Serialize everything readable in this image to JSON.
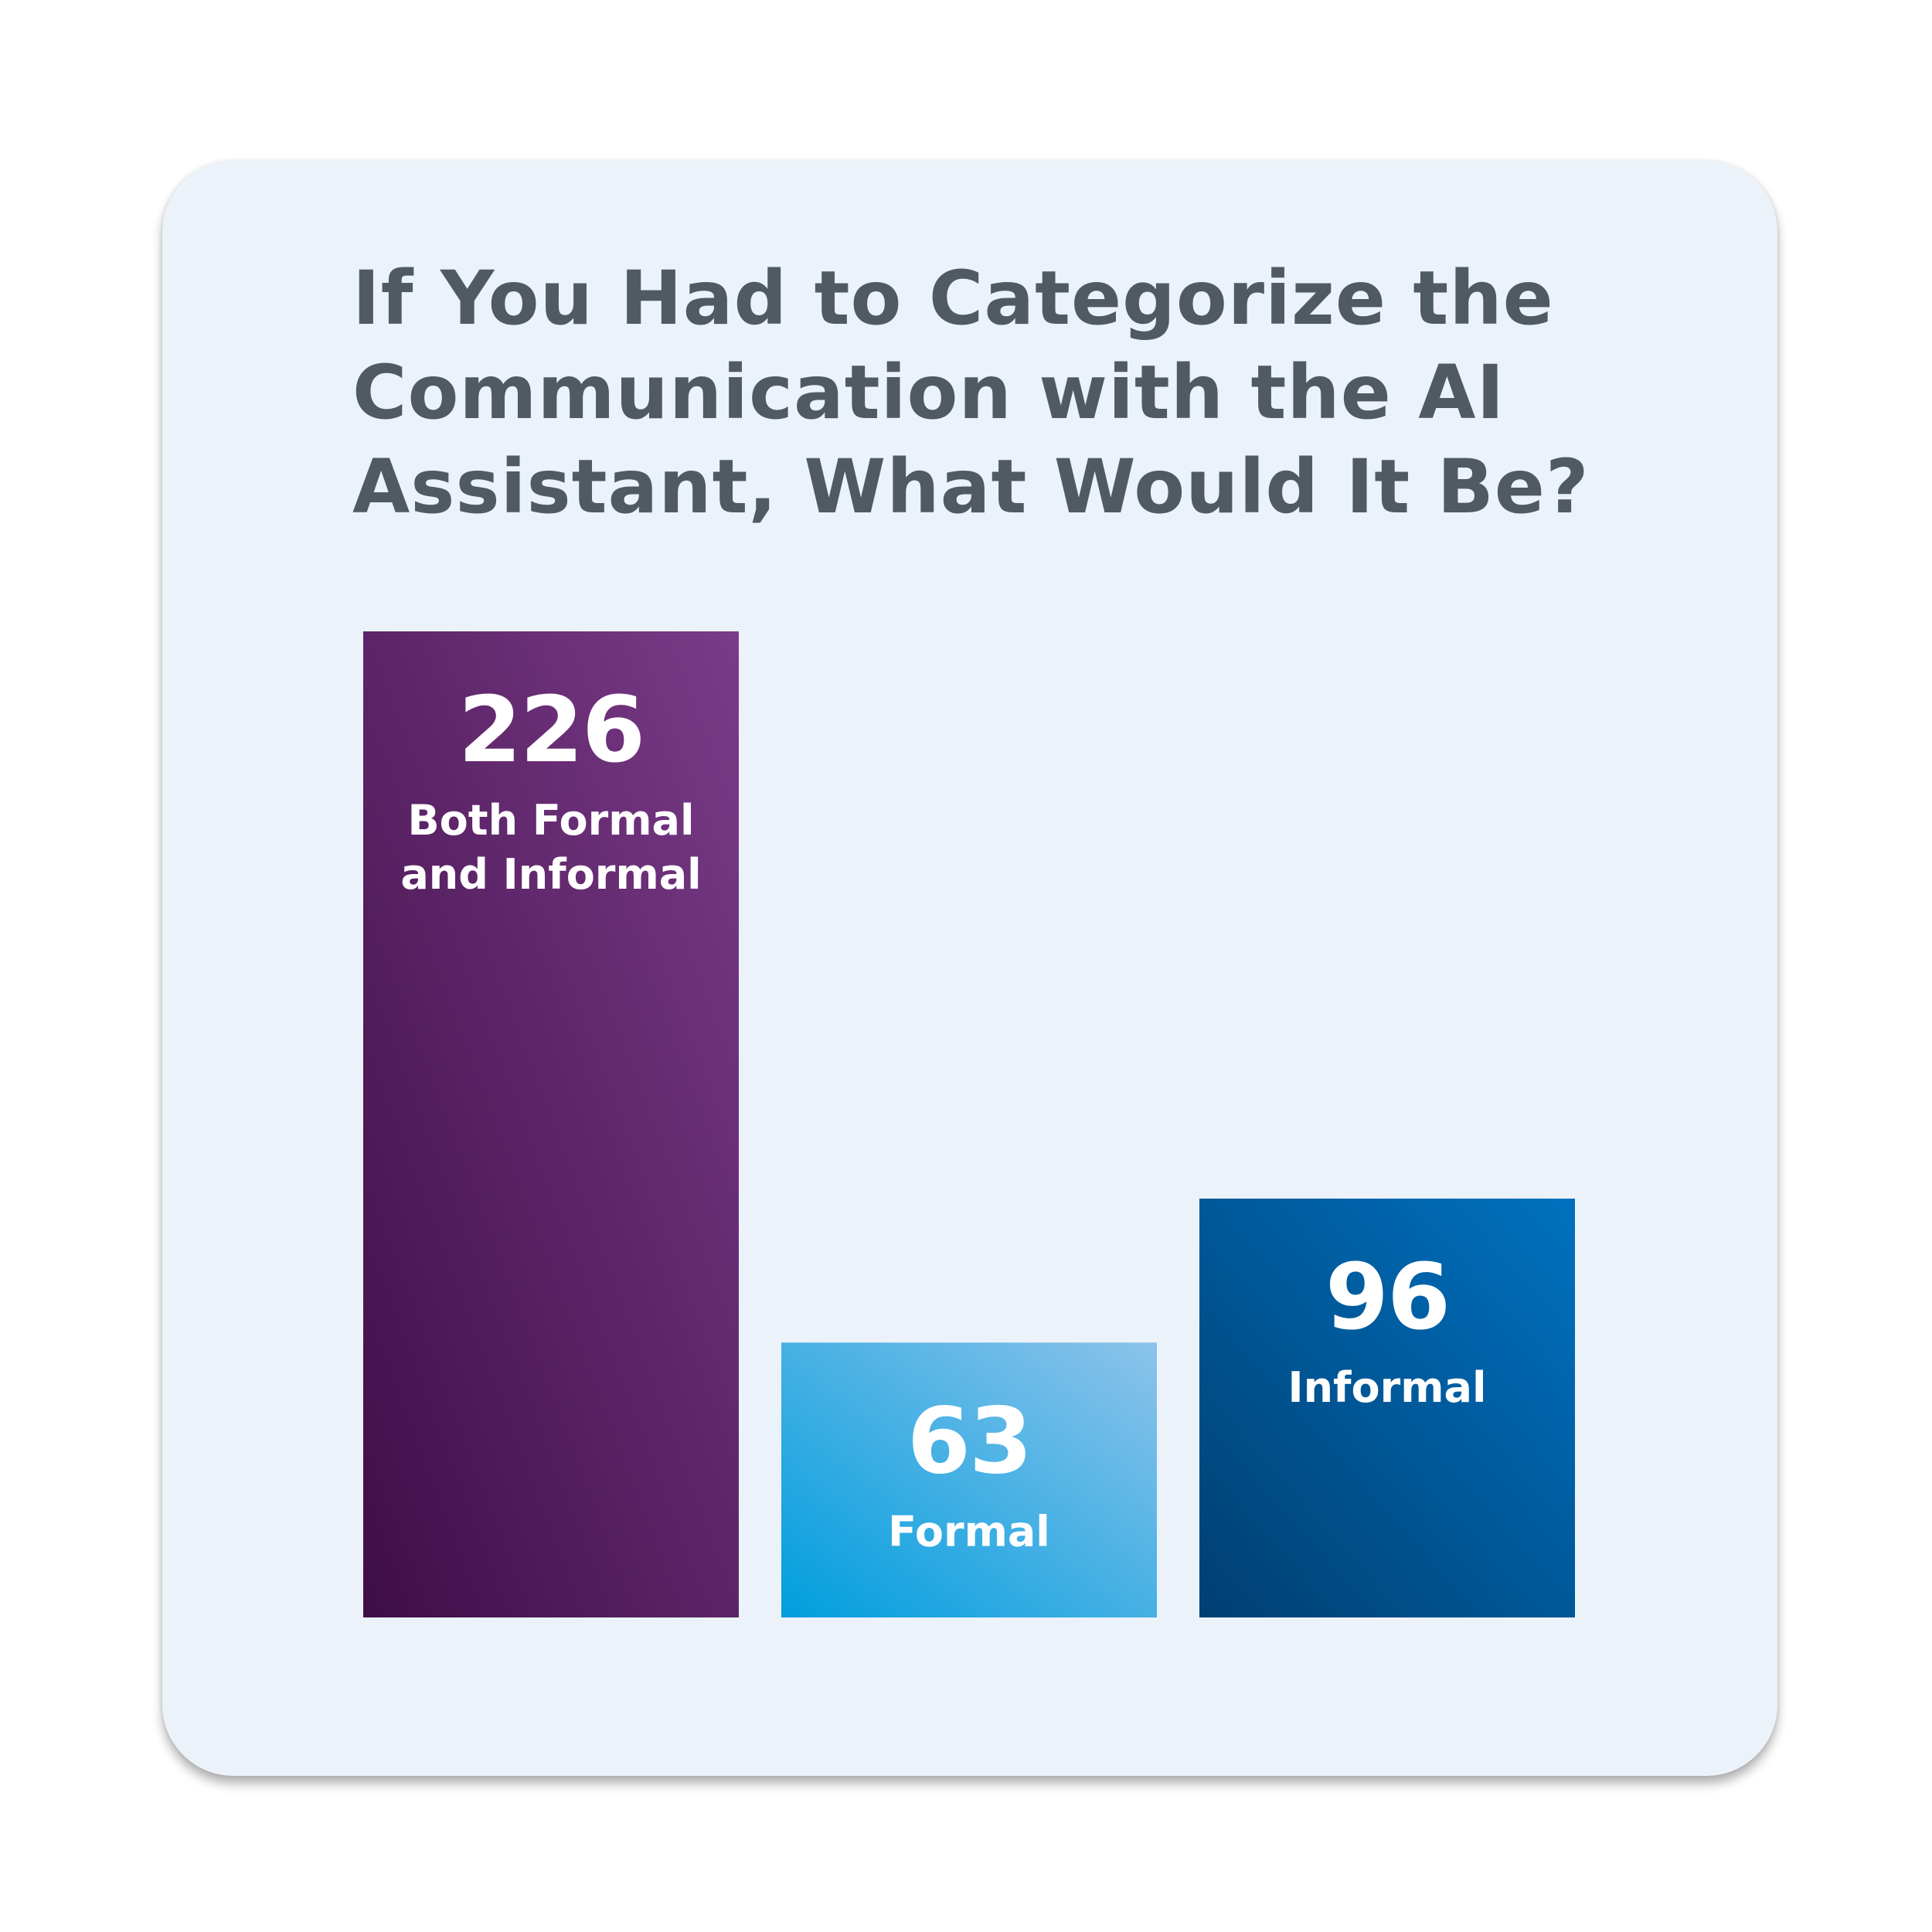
{
  "chart_data": {
    "type": "bar",
    "title": "If You Had to Categorize the Communication with the AI Assistant, What Would It Be?",
    "categories": [
      "Both Formal and Informal",
      "Formal",
      "Informal"
    ],
    "category_lines": [
      [
        "Both Formal",
        "and Informal"
      ],
      [
        "Formal"
      ],
      [
        "Informal"
      ]
    ],
    "values": [
      226,
      63,
      96
    ],
    "value_labels": [
      "226",
      "63",
      "96"
    ],
    "ylim": [
      0,
      226
    ],
    "grid": false,
    "legend": "none",
    "colors": [
      {
        "from": "#3e0e47",
        "to": "#7a3b88"
      },
      {
        "from": "#009ede",
        "to": "#8cc3ea"
      },
      {
        "from": "#003f72",
        "to": "#0071bf"
      }
    ]
  },
  "card_color": "#ecf2f9",
  "title_color": "#505a61"
}
